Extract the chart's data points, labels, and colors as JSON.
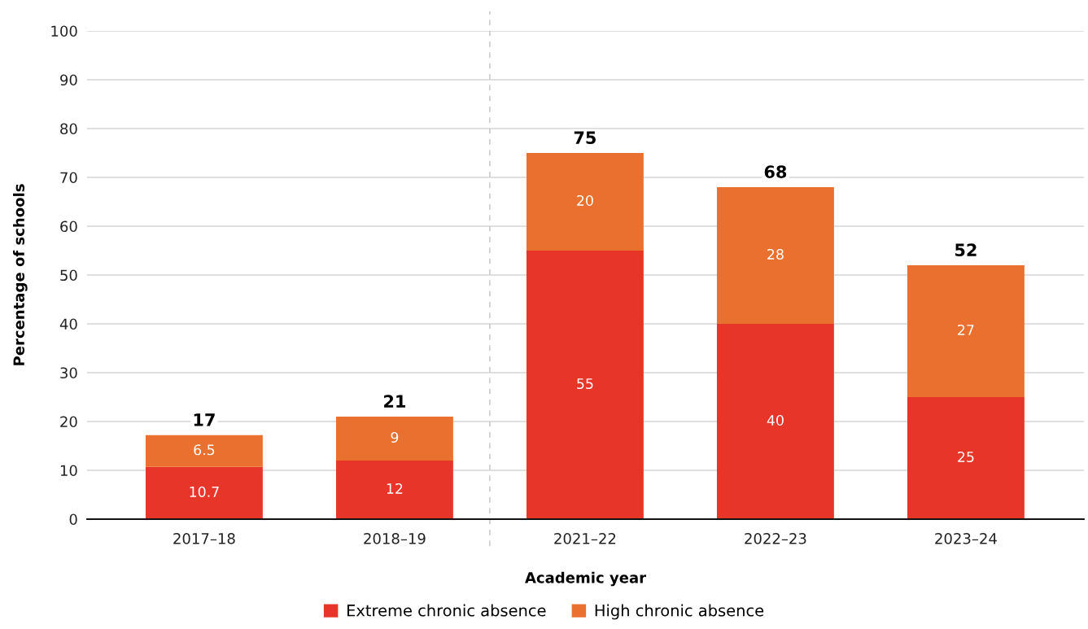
{
  "chart_data": {
    "type": "bar",
    "stacked": true,
    "categories": [
      "2017–18",
      "2018–19",
      "2021–22",
      "2022–23",
      "2023–24"
    ],
    "series": [
      {
        "name": "Extreme chronic absence",
        "color": "#e8352a",
        "values": [
          10.7,
          12,
          55,
          40,
          25
        ]
      },
      {
        "name": "High chronic absence",
        "color": "#e9702e",
        "values": [
          6.5,
          9,
          20,
          28,
          27
        ]
      }
    ],
    "totals": [
      "17",
      "21",
      "75",
      "68",
      "52"
    ],
    "data_labels": true,
    "xlabel": "Academic year",
    "ylabel": "Percentage of schools",
    "ylim": [
      0,
      100
    ],
    "yticks": [
      0,
      10,
      20,
      30,
      40,
      50,
      60,
      70,
      80,
      90,
      100
    ],
    "ref_lines": [
      {
        "axis": "x",
        "value": "2021–22",
        "color": "#cccccc",
        "line_style": "dashed"
      }
    ],
    "grid": "y",
    "legend": "bottom"
  }
}
